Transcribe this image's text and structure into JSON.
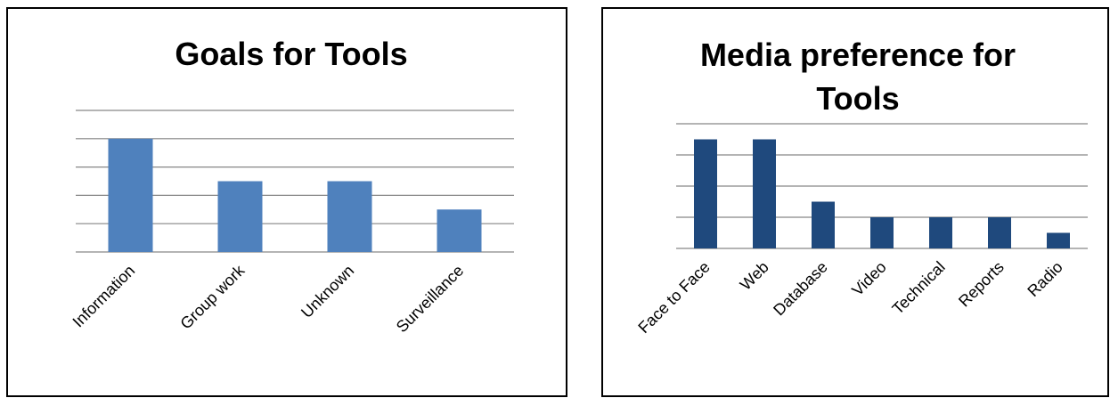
{
  "chart_data": [
    {
      "type": "bar",
      "title": "Goals for Tools",
      "categories": [
        "Information",
        "Group work",
        "Unknown",
        "Surveillance"
      ],
      "values": [
        4,
        2.5,
        2.5,
        1.5
      ],
      "ylim": [
        0,
        5
      ],
      "grid": true,
      "color": "#4F81BD"
    },
    {
      "type": "bar",
      "title": "Media preference for Tools",
      "title_lines": [
        "Media preference for",
        "Tools"
      ],
      "categories": [
        "Face to Face",
        "Web",
        "Database",
        "Video",
        "Technical",
        "Reports",
        "Radio"
      ],
      "values": [
        3.5,
        3.5,
        1.5,
        1,
        1,
        1,
        0.5
      ],
      "ylim": [
        0,
        4
      ],
      "grid": true,
      "color": "#1F497D"
    }
  ]
}
